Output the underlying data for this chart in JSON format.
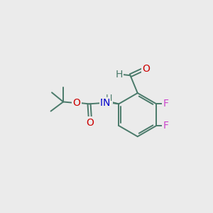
{
  "background_color": "#ebebeb",
  "bond_color": "#4a7a6a",
  "bond_width": 1.4,
  "figsize": [
    3.0,
    3.0
  ],
  "dpi": 100,
  "atom_colors": {
    "O": "#cc0000",
    "N": "#0000cc",
    "F": "#cc44cc",
    "H": "#4a7a6a",
    "C": "#4a7a6a"
  }
}
